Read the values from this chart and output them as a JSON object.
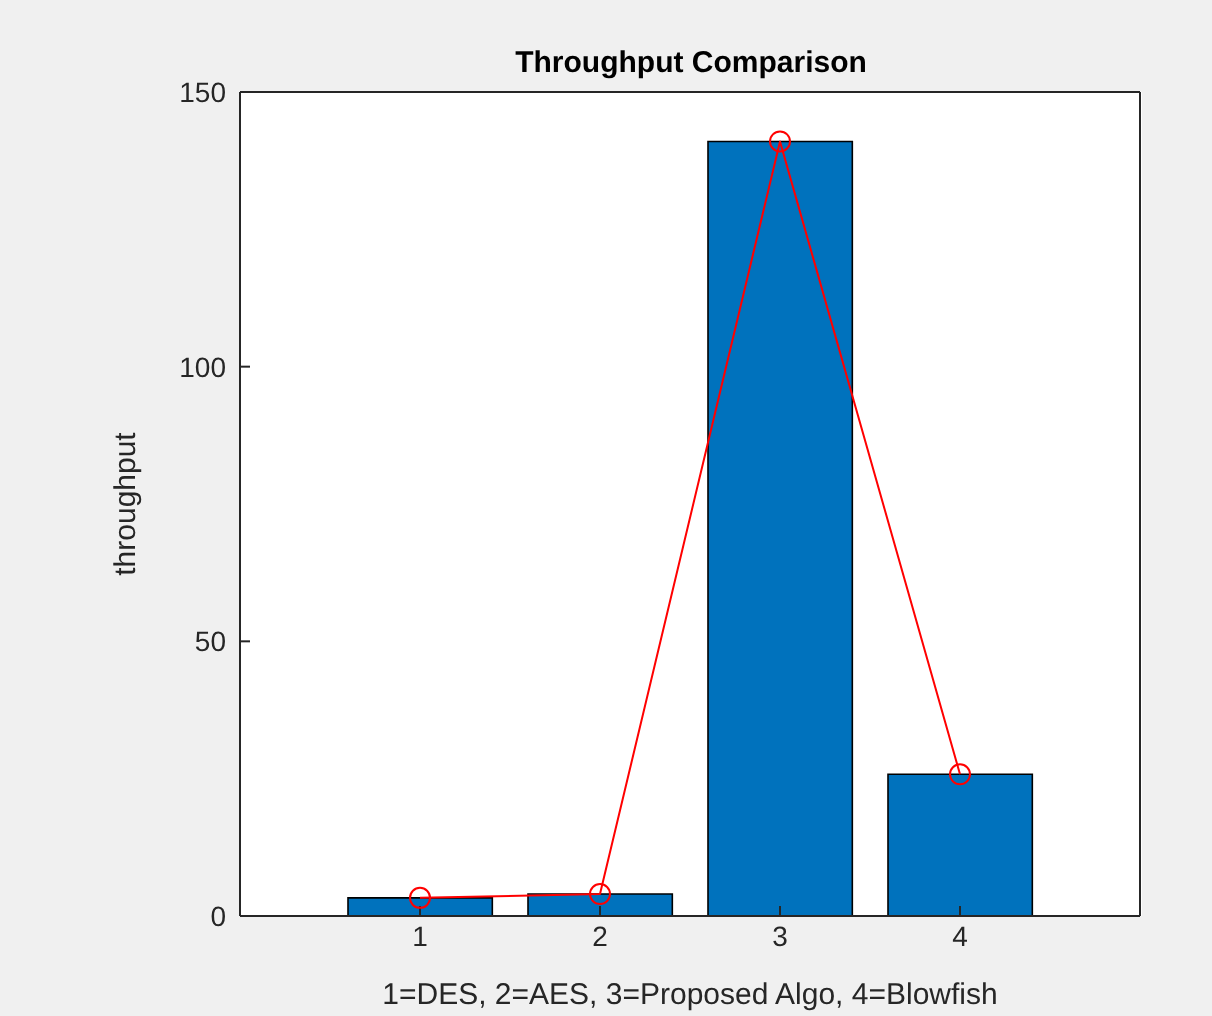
{
  "chart_data": {
    "type": "bar",
    "title": "Throughput Comparison",
    "xlabel": "1=DES, 2=AES, 3=Proposed Algo, 4=Blowfish",
    "ylabel": "throughput",
    "x": [
      1,
      2,
      3,
      4
    ],
    "xlim": [
      0,
      5
    ],
    "xticks": [
      1,
      2,
      3,
      4
    ],
    "ylim": [
      0,
      150
    ],
    "yticks": [
      0,
      50,
      100,
      150
    ],
    "marker": "circle",
    "series": [
      {
        "color": "#0072bd",
        "values": [
          3.3,
          4,
          141,
          25.8
        ]
      },
      {
        "type": "line",
        "color": "#ff0000",
        "values": [
          3.3,
          4,
          141,
          25.8
        ]
      }
    ]
  }
}
